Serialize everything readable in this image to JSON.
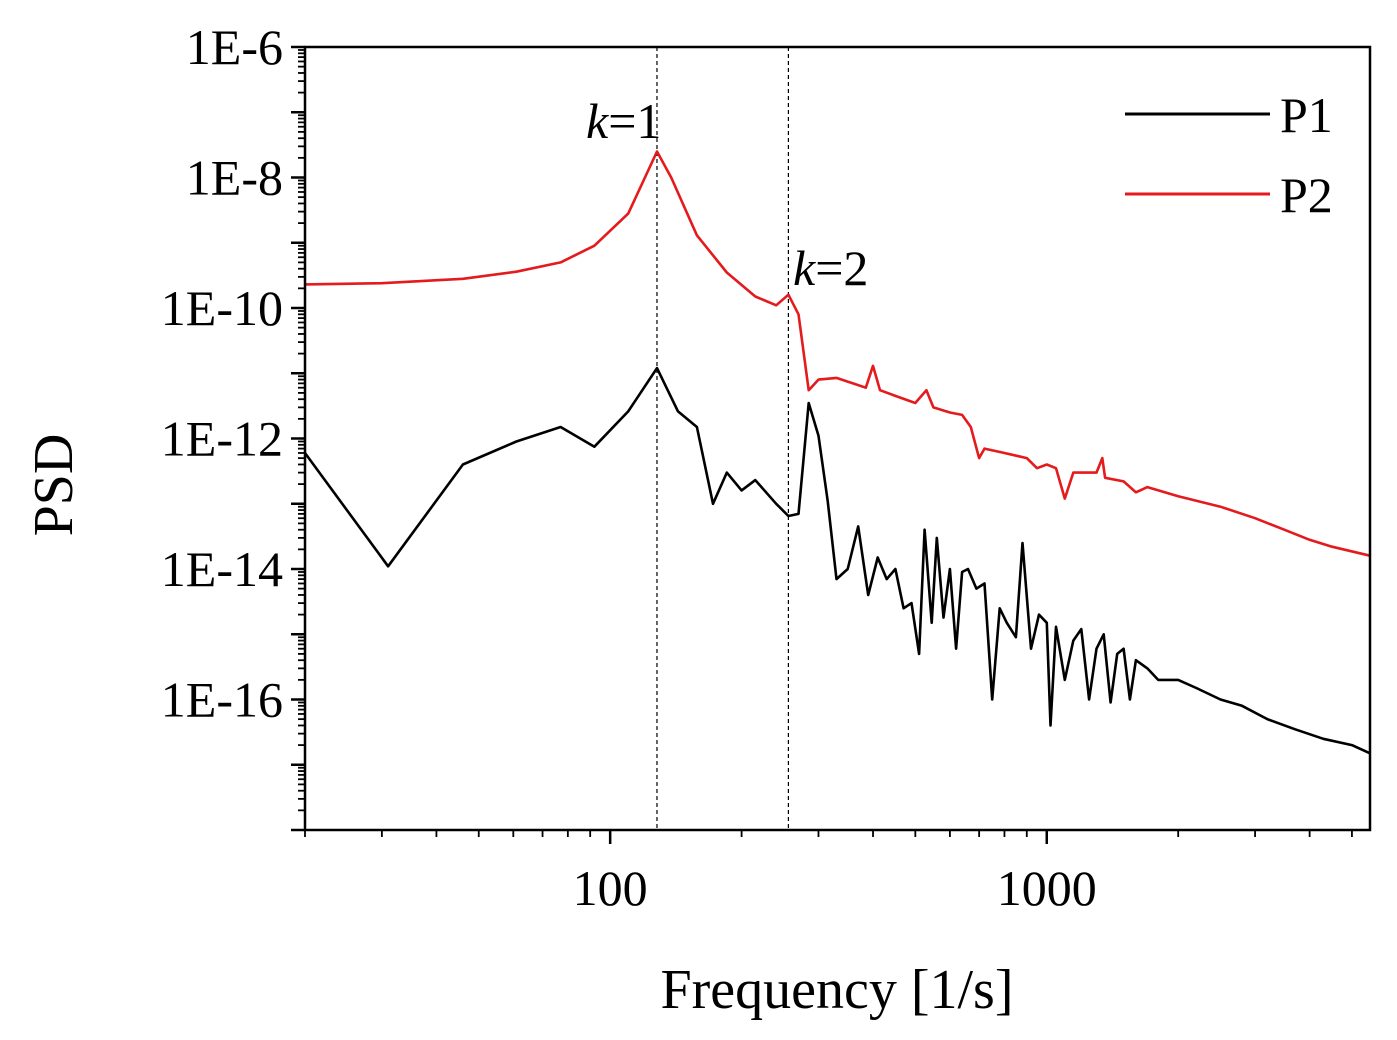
{
  "chart_data": {
    "type": "line",
    "title": "",
    "xlabel": "Frequency [1/s]",
    "ylabel": "PSD",
    "xscale": "log",
    "yscale": "log",
    "xlim": [
      20,
      5500
    ],
    "ylim": [
      1e-18,
      1e-06
    ],
    "x_ticks": [
      {
        "value": 100,
        "label": "100"
      },
      {
        "value": 1000,
        "label": "1000"
      }
    ],
    "y_ticks": [
      {
        "value": 1e-06,
        "label": "1E-6"
      },
      {
        "value": 1e-08,
        "label": "1E-8"
      },
      {
        "value": 1e-10,
        "label": "1E-10"
      },
      {
        "value": 1e-12,
        "label": "1E-12"
      },
      {
        "value": 1e-14,
        "label": "1E-14"
      },
      {
        "value": 1e-16,
        "label": "1E-16"
      }
    ],
    "legend_position": "top-right",
    "annotations": [
      {
        "italic": "k",
        "rest": "=1",
        "x": 128,
        "y": 3e-07
      },
      {
        "italic": "k",
        "rest": "=2",
        "x": 256,
        "y": 3e-10
      }
    ],
    "reference_lines": [
      128,
      256
    ],
    "series": [
      {
        "name": "P1",
        "color": "#000000",
        "points": [
          [
            20,
            6e-13
          ],
          [
            31,
            1.1e-14
          ],
          [
            46,
            4e-13
          ],
          [
            61,
            9e-13
          ],
          [
            77,
            1.5e-12
          ],
          [
            92,
            7.5e-13
          ],
          [
            110,
            2.6e-12
          ],
          [
            128,
            1.2e-11
          ],
          [
            143,
            2.6e-12
          ],
          [
            158,
            1.5e-12
          ],
          [
            172,
            1e-13
          ],
          [
            185,
            3e-13
          ],
          [
            200,
            1.6e-13
          ],
          [
            215,
            2.3e-13
          ],
          [
            240,
            1e-13
          ],
          [
            256,
            6.5e-14
          ],
          [
            270,
            7e-14
          ],
          [
            285,
            3.5e-12
          ],
          [
            300,
            1.1e-12
          ],
          [
            315,
            1.1e-13
          ],
          [
            330,
            7e-15
          ],
          [
            350,
            1e-14
          ],
          [
            370,
            4.5e-14
          ],
          [
            390,
            4e-15
          ],
          [
            410,
            1.5e-14
          ],
          [
            430,
            7e-15
          ],
          [
            450,
            1e-14
          ],
          [
            470,
            2.5e-15
          ],
          [
            490,
            3e-15
          ],
          [
            510,
            5e-16
          ],
          [
            525,
            4e-14
          ],
          [
            545,
            1.5e-15
          ],
          [
            560,
            3e-14
          ],
          [
            580,
            1.8e-15
          ],
          [
            600,
            1e-14
          ],
          [
            620,
            6e-16
          ],
          [
            640,
            9e-15
          ],
          [
            660,
            1e-14
          ],
          [
            690,
            5e-15
          ],
          [
            720,
            6e-15
          ],
          [
            750,
            1e-16
          ],
          [
            780,
            2.5e-15
          ],
          [
            810,
            1.5e-15
          ],
          [
            850,
            9e-16
          ],
          [
            880,
            2.5e-14
          ],
          [
            920,
            6e-16
          ],
          [
            960,
            2e-15
          ],
          [
            1000,
            1.5e-15
          ],
          [
            1020,
            4e-17
          ],
          [
            1050,
            1.3e-15
          ],
          [
            1100,
            2e-16
          ],
          [
            1150,
            8e-16
          ],
          [
            1200,
            1.2e-15
          ],
          [
            1250,
            1e-16
          ],
          [
            1300,
            6e-16
          ],
          [
            1350,
            1e-15
          ],
          [
            1400,
            9e-17
          ],
          [
            1450,
            5e-16
          ],
          [
            1500,
            6e-16
          ],
          [
            1550,
            1e-16
          ],
          [
            1600,
            4e-16
          ],
          [
            1700,
            3e-16
          ],
          [
            1800,
            2e-16
          ],
          [
            2000,
            2e-16
          ],
          [
            2200,
            1.5e-16
          ],
          [
            2500,
            1e-16
          ],
          [
            2800,
            8e-17
          ],
          [
            3200,
            5e-17
          ],
          [
            3700,
            3.5e-17
          ],
          [
            4300,
            2.5e-17
          ],
          [
            5000,
            2e-17
          ],
          [
            5500,
            1.5e-17
          ]
        ]
      },
      {
        "name": "P2",
        "color": "#e41a1c",
        "points": [
          [
            20,
            2.3e-10
          ],
          [
            30,
            2.4e-10
          ],
          [
            46,
            2.8e-10
          ],
          [
            61,
            3.6e-10
          ],
          [
            77,
            5e-10
          ],
          [
            92,
            9e-10
          ],
          [
            110,
            2.8e-09
          ],
          [
            128,
            2.5e-08
          ],
          [
            138,
            1e-08
          ],
          [
            158,
            1.3e-09
          ],
          [
            185,
            3.5e-10
          ],
          [
            215,
            1.5e-10
          ],
          [
            240,
            1.1e-10
          ],
          [
            256,
            1.6e-10
          ],
          [
            270,
            8e-11
          ],
          [
            285,
            5.5e-12
          ],
          [
            300,
            8e-12
          ],
          [
            330,
            8.5e-12
          ],
          [
            360,
            7e-12
          ],
          [
            385,
            6e-12
          ],
          [
            400,
            1.3e-11
          ],
          [
            415,
            5.5e-12
          ],
          [
            450,
            4.5e-12
          ],
          [
            500,
            3.5e-12
          ],
          [
            530,
            5.5e-12
          ],
          [
            550,
            3e-12
          ],
          [
            600,
            2.5e-12
          ],
          [
            640,
            2.3e-12
          ],
          [
            670,
            1.5e-12
          ],
          [
            700,
            5e-13
          ],
          [
            720,
            7e-13
          ],
          [
            800,
            6e-13
          ],
          [
            900,
            5e-13
          ],
          [
            950,
            3.5e-13
          ],
          [
            1000,
            4e-13
          ],
          [
            1050,
            3.5e-13
          ],
          [
            1100,
            1.2e-13
          ],
          [
            1150,
            3e-13
          ],
          [
            1300,
            3e-13
          ],
          [
            1340,
            5e-13
          ],
          [
            1360,
            2.5e-13
          ],
          [
            1500,
            2.2e-13
          ],
          [
            1600,
            1.5e-13
          ],
          [
            1700,
            1.8e-13
          ],
          [
            2000,
            1.3e-13
          ],
          [
            2500,
            9e-14
          ],
          [
            3000,
            6e-14
          ],
          [
            3500,
            4e-14
          ],
          [
            4000,
            2.8e-14
          ],
          [
            4500,
            2.2e-14
          ],
          [
            5500,
            1.6e-14
          ]
        ]
      }
    ]
  }
}
